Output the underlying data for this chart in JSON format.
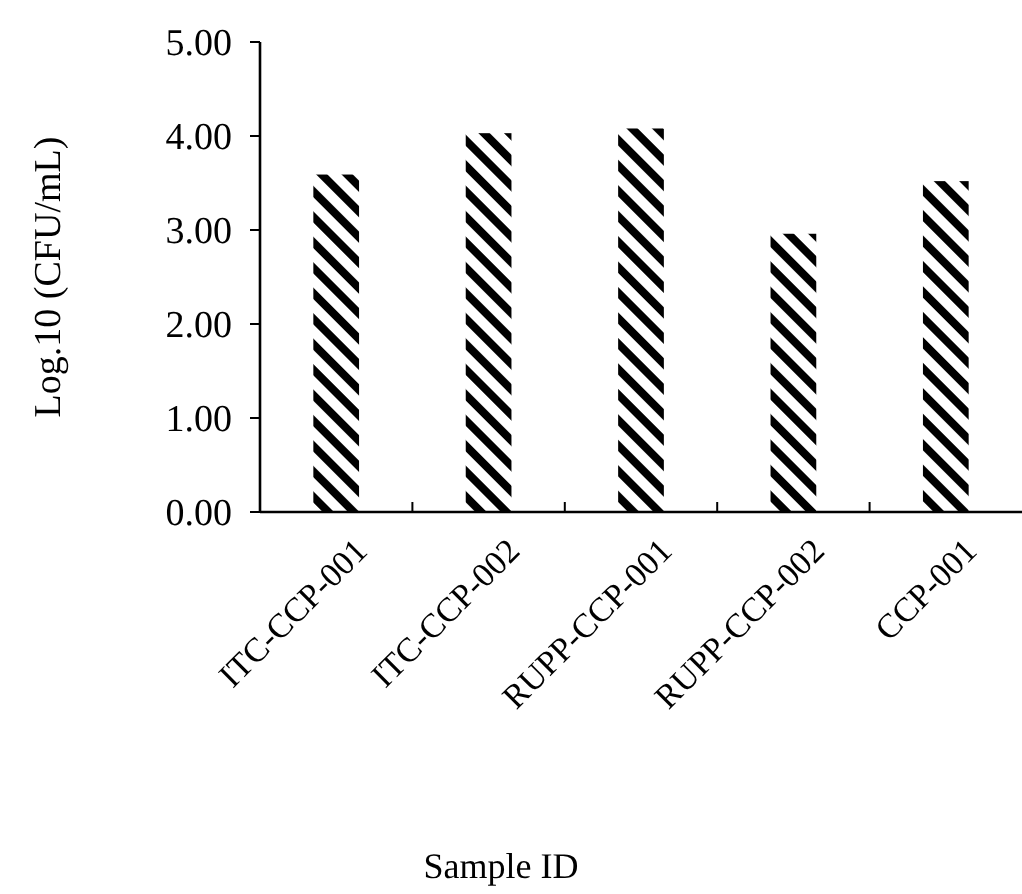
{
  "chart_data": {
    "type": "bar",
    "xlabel": "Sample ID",
    "ylabel": "Log.10 (CFU/mL)",
    "categories": [
      "ITC-CCP-001",
      "ITC-CCP-002",
      "RUPP-CCP-001",
      "RUPP-CCP-002",
      "CCP-001"
    ],
    "values": [
      3.59,
      4.03,
      4.08,
      2.96,
      3.52
    ],
    "color": "#000000",
    "ylim": [
      0,
      5
    ],
    "yticks": [
      {
        "value": 0,
        "label": "0.00"
      },
      {
        "value": 1,
        "label": "1.00"
      },
      {
        "value": 2,
        "label": "2.00"
      },
      {
        "value": 3,
        "label": "3.00"
      },
      {
        "value": 4,
        "label": "4.00"
      },
      {
        "value": 5,
        "label": "5.00"
      }
    ],
    "grid": false
  }
}
